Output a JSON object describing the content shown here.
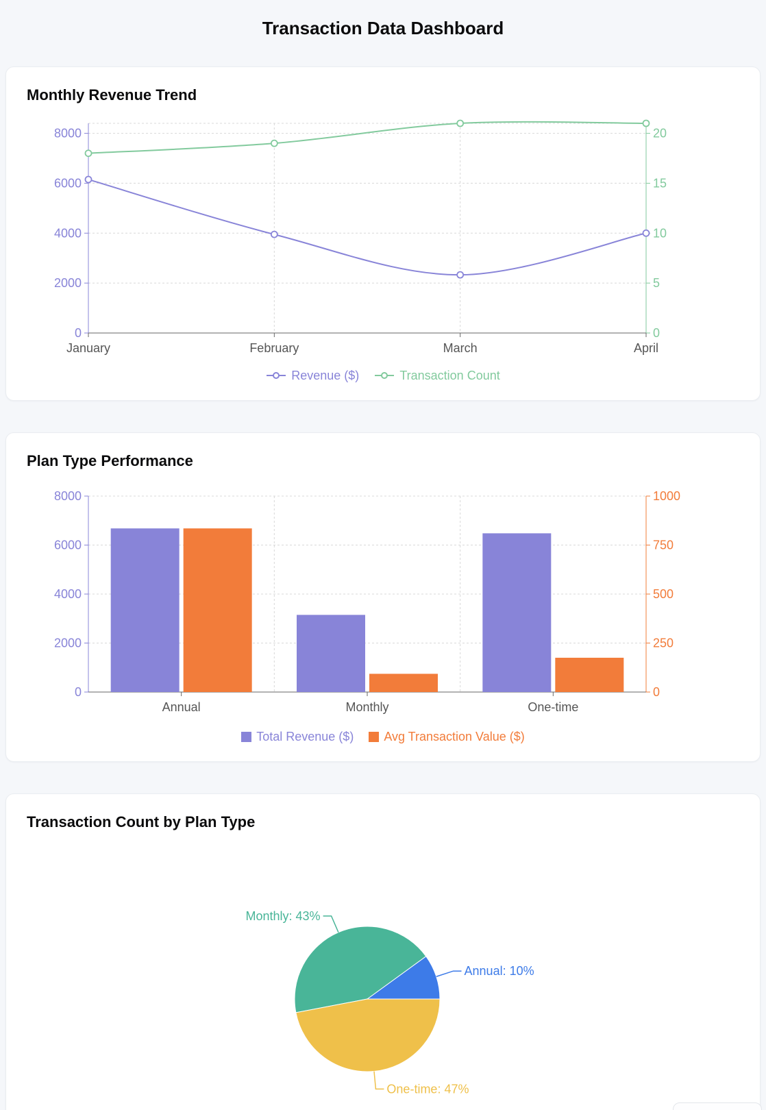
{
  "page_title": "Transaction Data Dashboard",
  "colors": {
    "page_bg": "#f5f7fa",
    "card_bg": "#ffffff",
    "card_border": "#eaedf1",
    "grid": "#d8d8d8",
    "axis_line": "#666666",
    "tick_text": "#555555",
    "purple": "#8884d8",
    "green": "#82ca9d",
    "orange": "#f27c3a",
    "blue": "#3d7be8",
    "teal": "#49b598",
    "yellow": "#efc04a"
  },
  "chart_data": [
    {
      "type": "line",
      "title": "Monthly Revenue Trend",
      "x": [
        "January",
        "February",
        "March",
        "April"
      ],
      "series": [
        {
          "name": "Revenue ($)",
          "axis": "left",
          "color": "#8884d8",
          "values": [
            6150,
            3950,
            2330,
            4000
          ]
        },
        {
          "name": "Transaction Count",
          "axis": "right",
          "color": "#82ca9d",
          "values": [
            18,
            19,
            21,
            21
          ]
        }
      ],
      "left_axis": {
        "ticks": [
          0,
          2000,
          4000,
          6000,
          8000
        ],
        "max": 8400,
        "color": "#8884d8"
      },
      "right_axis": {
        "ticks": [
          0,
          5,
          10,
          15,
          20
        ],
        "max": 21,
        "color": "#82ca9d"
      },
      "grid": "dashed",
      "legend_position": "bottom"
    },
    {
      "type": "bar",
      "title": "Plan Type Performance",
      "categories": [
        "Annual",
        "Monthly",
        "One-time"
      ],
      "series": [
        {
          "name": "Total Revenue ($)",
          "axis": "left",
          "color": "#8884d8",
          "values": [
            6680,
            3150,
            6480
          ]
        },
        {
          "name": "Avg Transaction Value ($)",
          "axis": "right",
          "color": "#f27c3a",
          "values": [
            835,
            93,
            175
          ]
        }
      ],
      "left_axis": {
        "ticks": [
          0,
          2000,
          4000,
          6000,
          8000
        ],
        "max": 8000,
        "color": "#8884d8"
      },
      "right_axis": {
        "ticks": [
          0,
          250,
          500,
          750,
          1000
        ],
        "max": 1000,
        "color": "#f27c3a"
      },
      "grid": "dashed",
      "legend_position": "bottom"
    },
    {
      "type": "pie",
      "title": "Transaction Count by Plan Type",
      "start_angle": 0,
      "direction": "counterclockwise",
      "slices": [
        {
          "label": "Annual",
          "percent": 10,
          "color": "#3d7be8",
          "label_text": "Annual: 10%"
        },
        {
          "label": "Monthly",
          "percent": 43,
          "color": "#49b598",
          "label_text": "Monthly: 43%"
        },
        {
          "label": "One-time",
          "percent": 47,
          "color": "#efc04a",
          "label_text": "One-time: 47%"
        }
      ]
    }
  ]
}
